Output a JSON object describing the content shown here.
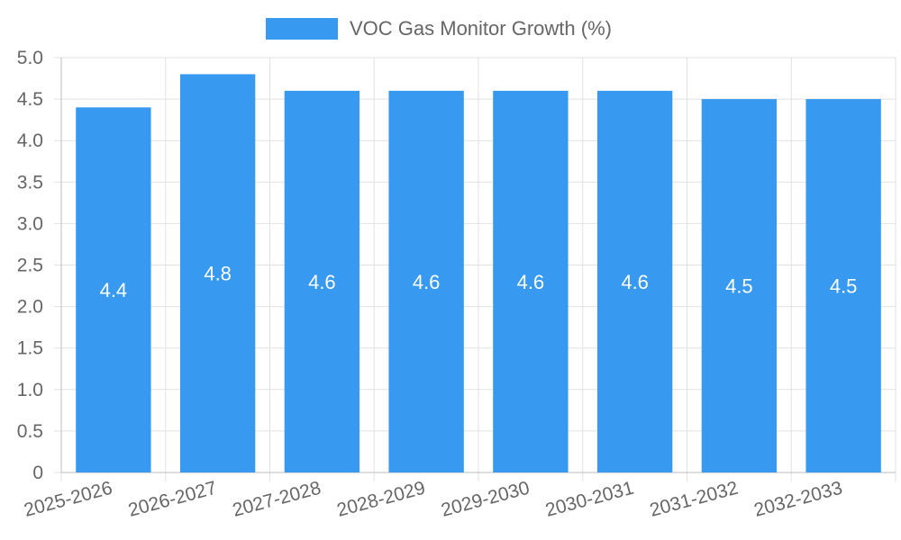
{
  "chart_data": {
    "type": "bar",
    "title": "",
    "xlabel": "",
    "ylabel": "",
    "categories": [
      "2025-2026",
      "2026-2027",
      "2027-2028",
      "2028-2029",
      "2029-2030",
      "2030-2031",
      "2031-2032",
      "2032-2033"
    ],
    "series": [
      {
        "name": "VOC Gas Monitor Growth (%)",
        "values": [
          4.4,
          4.8,
          4.6,
          4.6,
          4.6,
          4.6,
          4.5,
          4.5
        ],
        "color": "#3799ef"
      }
    ],
    "data_labels": [
      "4.4",
      "4.8",
      "4.6",
      "4.6",
      "4.6",
      "4.6",
      "4.5",
      "4.5"
    ],
    "ylim": [
      0,
      5
    ],
    "yticks": [
      0,
      0.5,
      1,
      1.5,
      2,
      2.5,
      3,
      3.5,
      4,
      4.5,
      5
    ],
    "ytick_labels": [
      "0",
      "0.5",
      "1.0",
      "1.5",
      "2.0",
      "2.5",
      "3.0",
      "3.5",
      "4.0",
      "4.5",
      "5.0"
    ],
    "grid": true,
    "legend_position": "top-center"
  }
}
